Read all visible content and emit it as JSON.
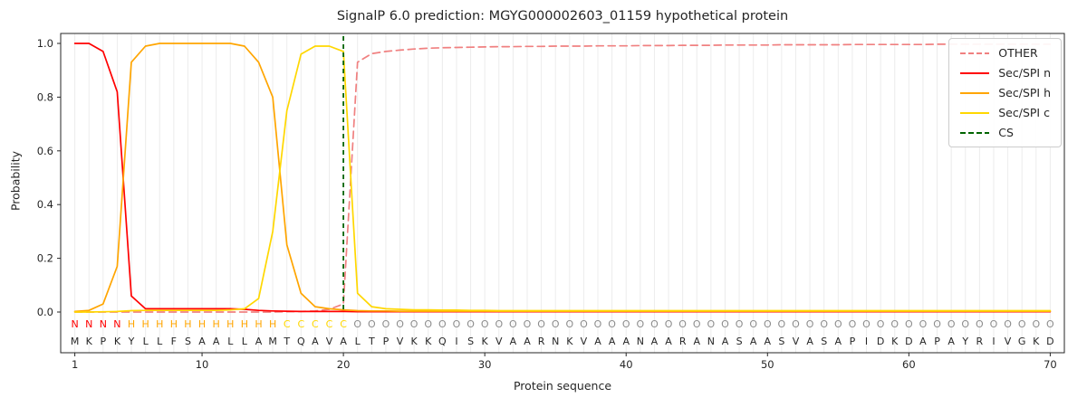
{
  "chart_data": {
    "type": "line",
    "title": "SignalP 6.0 prediction: MGYG000002603_01159 hypothetical protein",
    "xlabel": "Protein sequence",
    "ylabel": "Probability",
    "xlim": [
      0,
      71
    ],
    "ylim": [
      0.0,
      1.0
    ],
    "x_ticks": [
      1,
      10,
      20,
      30,
      40,
      50,
      60,
      70
    ],
    "y_ticks": [
      0.0,
      0.2,
      0.4,
      0.6,
      0.8,
      1.0
    ],
    "grid": "vertical-per-residue",
    "grid_color": "#ececec",
    "legend_position": "upper-right",
    "sequence": "MKPKYLLFSAALLAMTQAVALTPVKKQISKVAARNKVAAANAARANASAASVASAPIDKDAPAYRIVGKD",
    "regions": "NNNNHHHHHHHHHHHCCCCCOOOOOOOOOOOOOOOOOOOOOOOOOOOOOOOOOOOOOOOOOOOOOOOOOO",
    "region_colors": {
      "N": "#ff0000",
      "H": "#ffa500",
      "C": "#ffd700",
      "O": "#8c8c8c"
    },
    "sequence_color": "#262626",
    "cs_position": 20,
    "series": [
      {
        "name": "OTHER",
        "color": "#f08080",
        "dash": true,
        "values": [
          0,
          0,
          0,
          0,
          0,
          0,
          0,
          0,
          0,
          0,
          0,
          0,
          0,
          0,
          0,
          0.001,
          0.002,
          0.004,
          0.01,
          0.03,
          0.93,
          0.962,
          0.97,
          0.975,
          0.979,
          0.982,
          0.984,
          0.985,
          0.986,
          0.987,
          0.988,
          0.988,
          0.989,
          0.989,
          0.99,
          0.99,
          0.99,
          0.991,
          0.991,
          0.991,
          0.992,
          0.992,
          0.992,
          0.993,
          0.993,
          0.993,
          0.994,
          0.994,
          0.994,
          0.994,
          0.995,
          0.995,
          0.995,
          0.995,
          0.995,
          0.996,
          0.996,
          0.996,
          0.996,
          0.996,
          0.996,
          0.997,
          0.997,
          0.997,
          0.997,
          0.997,
          0.997,
          0.997,
          0.997,
          0.997
        ]
      },
      {
        "name": "Sec/SPI n",
        "color": "#ff0000",
        "dash": false,
        "values": [
          1.0,
          1.0,
          0.97,
          0.82,
          0.06,
          0.012,
          0.012,
          0.012,
          0.012,
          0.012,
          0.012,
          0.012,
          0.01,
          0.006,
          0.004,
          0.003,
          0.002,
          0.002,
          0.002,
          0.002,
          0.001,
          0.001,
          0.001,
          0.001,
          0.001,
          0.001,
          0.001,
          0.001,
          0.001,
          0.001,
          0.001,
          0.001,
          0.001,
          0.001,
          0.001,
          0.001,
          0.001,
          0.001,
          0.001,
          0.001,
          0.001,
          0.001,
          0.001,
          0.001,
          0.001,
          0.001,
          0.001,
          0.001,
          0.001,
          0.001,
          0.001,
          0.001,
          0.001,
          0.001,
          0.001,
          0.001,
          0.001,
          0.001,
          0.001,
          0.001,
          0.001,
          0.001,
          0.001,
          0.001,
          0.001,
          0.001,
          0.001,
          0.001,
          0.001,
          0.001
        ]
      },
      {
        "name": "Sec/SPI h",
        "color": "#ffa500",
        "dash": false,
        "values": [
          0.002,
          0.006,
          0.03,
          0.17,
          0.93,
          0.99,
          1.0,
          1.0,
          1.0,
          1.0,
          1.0,
          1.0,
          0.99,
          0.93,
          0.8,
          0.25,
          0.07,
          0.02,
          0.012,
          0.008,
          0.005,
          0.004,
          0.004,
          0.003,
          0.003,
          0.003,
          0.003,
          0.003,
          0.003,
          0.003,
          0.003,
          0.003,
          0.003,
          0.003,
          0.003,
          0.003,
          0.003,
          0.003,
          0.003,
          0.003,
          0.003,
          0.003,
          0.003,
          0.003,
          0.003,
          0.003,
          0.003,
          0.003,
          0.003,
          0.003,
          0.003,
          0.003,
          0.003,
          0.003,
          0.003,
          0.003,
          0.003,
          0.003,
          0.003,
          0.003,
          0.003,
          0.003,
          0.003,
          0.003,
          0.003,
          0.003,
          0.003,
          0.003,
          0.003,
          0.003
        ]
      },
      {
        "name": "Sec/SPI c",
        "color": "#ffd700",
        "dash": false,
        "values": [
          0,
          0,
          0.001,
          0.002,
          0.005,
          0.006,
          0.006,
          0.006,
          0.006,
          0.006,
          0.006,
          0.008,
          0.012,
          0.05,
          0.3,
          0.75,
          0.96,
          0.99,
          0.99,
          0.97,
          0.07,
          0.02,
          0.012,
          0.01,
          0.008,
          0.008,
          0.007,
          0.007,
          0.006,
          0.006,
          0.005,
          0.005,
          0.005,
          0.005,
          0.005,
          0.005,
          0.005,
          0.005,
          0.005,
          0.005,
          0.005,
          0.005,
          0.005,
          0.005,
          0.005,
          0.005,
          0.005,
          0.005,
          0.005,
          0.005,
          0.005,
          0.005,
          0.005,
          0.005,
          0.005,
          0.005,
          0.005,
          0.005,
          0.005,
          0.005,
          0.005,
          0.005,
          0.005,
          0.005,
          0.005,
          0.005,
          0.005,
          0.005,
          0.005,
          0.005
        ]
      },
      {
        "name": "CS",
        "color": "#006400",
        "dash": true,
        "type": "vline",
        "x": 20
      }
    ]
  }
}
